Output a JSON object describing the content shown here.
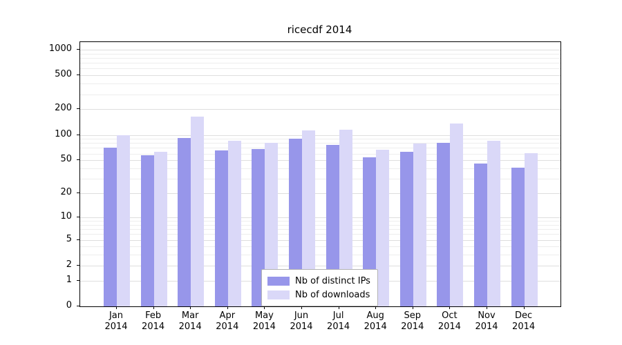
{
  "title": "ricecdf 2014",
  "chart_data": {
    "type": "bar",
    "title": "ricecdf 2014",
    "year": "2014",
    "months": [
      "Jan",
      "Feb",
      "Mar",
      "Apr",
      "May",
      "Jun",
      "Jul",
      "Aug",
      "Sep",
      "Oct",
      "Nov",
      "Dec"
    ],
    "series": [
      {
        "name": "Nb of distinct IPs",
        "color": "#9796ea",
        "values": [
          70,
          57,
          92,
          65,
          68,
          91,
          76,
          54,
          63,
          81,
          46,
          41
        ]
      },
      {
        "name": "Nb of downloads",
        "color": "#dad8f8",
        "values": [
          100,
          63,
          163,
          85,
          81,
          113,
          116,
          67,
          79,
          135,
          86,
          61
        ]
      }
    ],
    "yscale": "log1p",
    "yticks": [
      1000,
      500,
      200,
      100,
      50,
      20,
      10,
      5,
      2,
      1,
      0
    ],
    "ylim": [
      0,
      1000
    ],
    "grid": "on",
    "grid_color_major": "#dedede",
    "grid_color_minor": "#ededed",
    "legend_position": "lower center"
  }
}
